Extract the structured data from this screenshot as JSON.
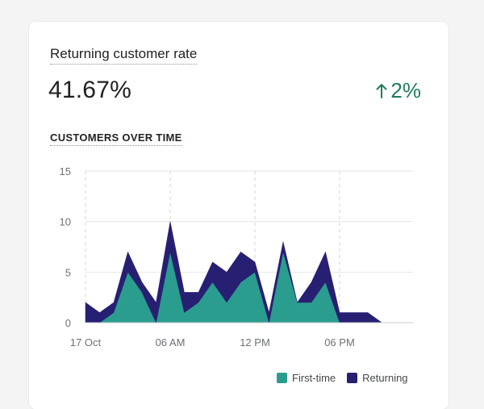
{
  "card": {
    "title": "Returning customer rate",
    "metric": "41.67%",
    "delta": "2%",
    "delta_direction": "up",
    "delta_color": "#1e7d5a",
    "section_title": "CUSTOMERS OVER TIME"
  },
  "chart_data": {
    "type": "area",
    "stacked": true,
    "ylim": [
      0,
      15
    ],
    "yticks": [
      0,
      5,
      10,
      15
    ],
    "xtick_labels": [
      "17 Oct",
      "06 AM",
      "12 PM",
      "06 PM"
    ],
    "xtick_indices": [
      0,
      6,
      12,
      18
    ],
    "x": [
      0,
      1,
      2,
      3,
      4,
      5,
      6,
      7,
      8,
      9,
      10,
      11,
      12,
      13,
      14,
      15,
      16,
      17,
      18,
      19,
      20,
      21
    ],
    "series": [
      {
        "name": "First-time",
        "color": "#2a9d8f",
        "values": [
          0,
          0,
          1,
          5,
          3,
          0,
          7,
          1,
          2,
          4,
          2,
          4,
          5,
          0,
          7,
          2,
          2,
          4,
          0,
          0,
          0,
          0
        ]
      },
      {
        "name": "Returning",
        "color": "#271f72",
        "values": [
          2,
          1,
          1,
          2,
          1,
          2,
          3,
          2,
          1,
          2,
          3,
          3,
          1,
          1,
          1,
          0,
          2,
          3,
          1,
          1,
          1,
          0
        ]
      }
    ],
    "grid": true,
    "legend_position": "bottom-right"
  }
}
